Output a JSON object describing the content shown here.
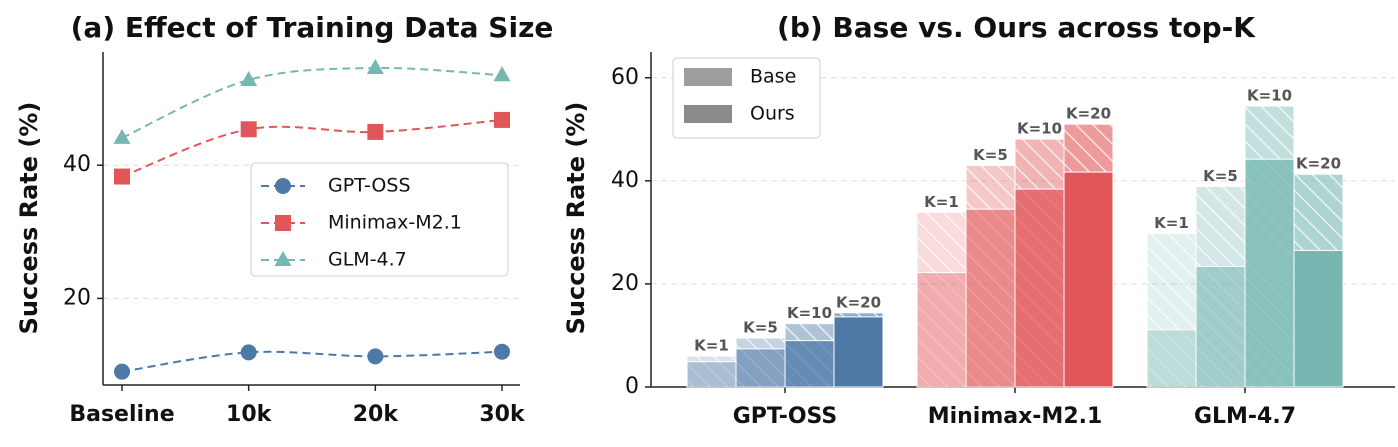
{
  "chart_data": [
    {
      "type": "line",
      "title": "(a) Effect of Training Data Size",
      "ylabel": "Success Rate (%)",
      "categories": [
        "Baseline",
        "10k",
        "20k",
        "30k"
      ],
      "series": [
        {
          "name": "GPT-OSS",
          "color": "#4e79a7",
          "marker": "circle",
          "values": [
            9.0,
            11.9,
            11.3,
            12.0
          ]
        },
        {
          "name": "Minimax-M2.1",
          "color": "#e15759",
          "marker": "square",
          "values": [
            38.3,
            45.4,
            45.0,
            46.8
          ]
        },
        {
          "name": "GLM-4.7",
          "color": "#76b7b2",
          "marker": "triangle",
          "values": [
            44.1,
            52.8,
            54.6,
            53.5
          ]
        }
      ],
      "ylim": [
        7,
        57
      ],
      "yticks": [
        20,
        40
      ],
      "grid": true,
      "legend": "center right"
    },
    {
      "type": "grouped_bar",
      "title": "(b) Base vs. Ours across top-K",
      "ylabel": "Success Rate (%)",
      "categories": [
        "GPT-OSS",
        "Minimax-M2.1",
        "GLM-4.7"
      ],
      "colors": [
        "#4e79a7",
        "#e15759",
        "#76b7b2"
      ],
      "k_labels": [
        "K=1",
        "K=5",
        "K=10",
        "K=20"
      ],
      "series": [
        {
          "name": "Base",
          "color": "#9e9e9e",
          "values": [
            [
              4.9,
              7.4,
              9.0,
              13.6
            ],
            [
              22.2,
              34.5,
              38.4,
              41.7
            ],
            [
              11.1,
              23.4,
              44.2,
              26.5
            ]
          ]
        },
        {
          "name": "Ours",
          "color": "#8a8a8a",
          "hatch": true,
          "values": [
            [
              6.0,
              9.5,
              12.3,
              14.4
            ],
            [
              33.9,
              43.0,
              48.1,
              51.0
            ],
            [
              29.8,
              38.9,
              54.5,
              41.3
            ]
          ]
        }
      ],
      "ylim": [
        0,
        65
      ],
      "yticks": [
        0,
        20,
        40,
        60
      ],
      "grid": true,
      "legend": "upper left"
    }
  ]
}
